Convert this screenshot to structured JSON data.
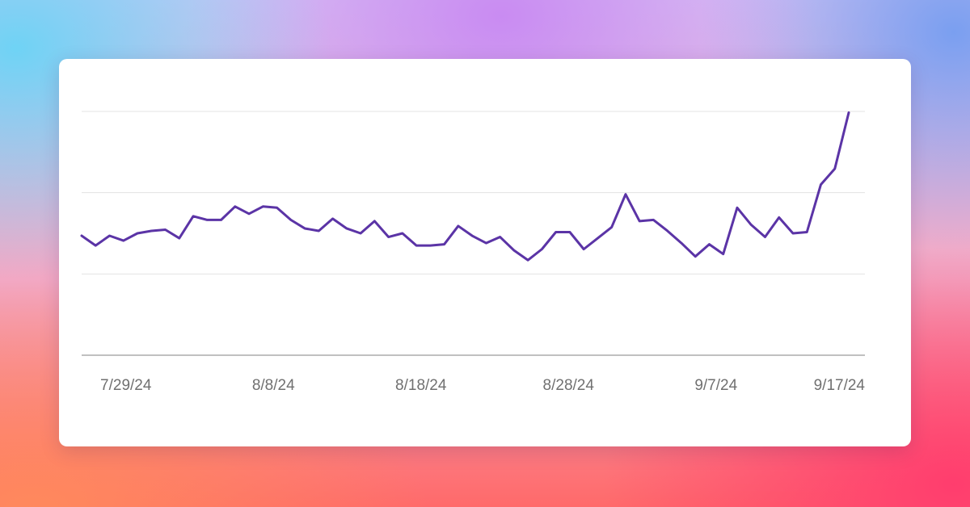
{
  "colors": {
    "line": "#5b34a6",
    "gridline": "#e3e3e3",
    "baseline": "#9a9a9a",
    "tick_text": "#707070",
    "card": "#ffffff"
  },
  "chart_data": {
    "type": "line",
    "title": "",
    "xlabel": "",
    "ylabel": "",
    "grid": true,
    "legend": "none",
    "x_start": "7/26/24",
    "x_end": "9/16/24",
    "ylim": [
      0,
      100
    ],
    "x_ticks": [
      "7/29/24",
      "8/8/24",
      "8/18/24",
      "8/28/24",
      "9/7/24",
      "9/17/24"
    ],
    "series": [
      {
        "name": "",
        "values": [
          49,
          45,
          49,
          47,
          50,
          51,
          51.5,
          48,
          57,
          55.5,
          55.5,
          61,
          58,
          61,
          60.5,
          55.5,
          52,
          51,
          56,
          52,
          50,
          55,
          48.5,
          50,
          45,
          45,
          45.5,
          53,
          49,
          46,
          48.5,
          43,
          39,
          43.5,
          50.5,
          50.5,
          43.5,
          48,
          52.5,
          66,
          55,
          55.5,
          51,
          46,
          40.5,
          45.5,
          41.5,
          60.5,
          53.5,
          48.5,
          56.5,
          50,
          50.5,
          70,
          76.5,
          99.5
        ]
      }
    ]
  }
}
